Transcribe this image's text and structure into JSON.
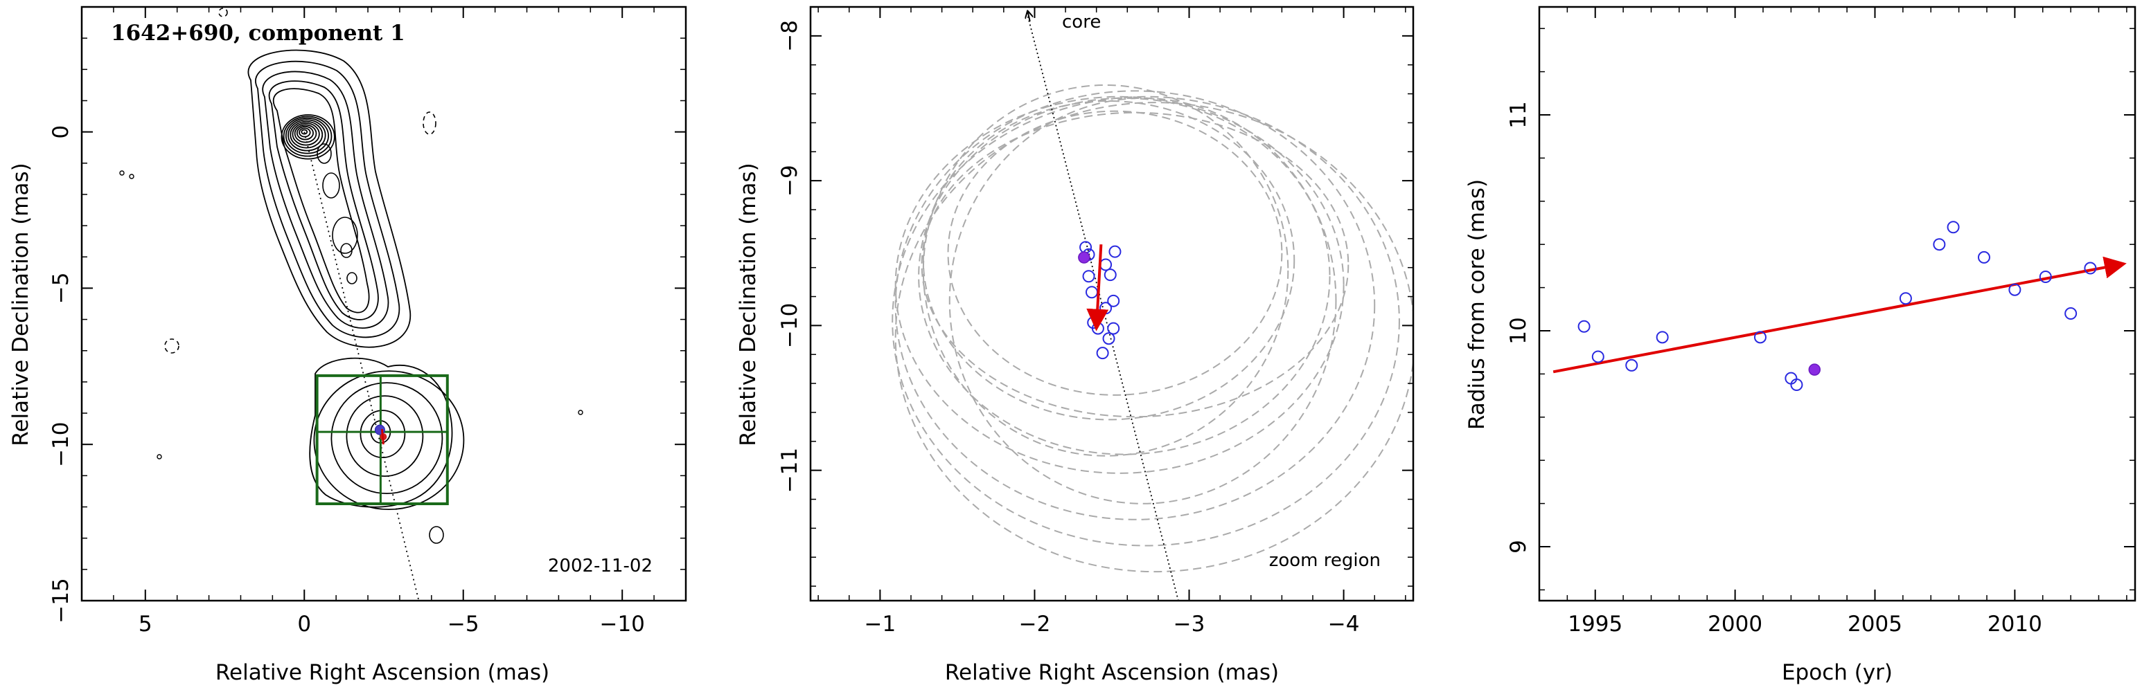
{
  "chart_data": [
    {
      "type": "contour-map",
      "title": "1642+690, component 1",
      "xlabel": "Relative Right Ascension (mas)",
      "ylabel": "Relative Declination (mas)",
      "date": "2002-11-02",
      "xlim": [
        7,
        -12
      ],
      "ylim": [
        -15,
        4
      ],
      "xticks": [
        5,
        0,
        -5,
        -10
      ],
      "yticks": [
        0,
        -5,
        -10,
        -15
      ],
      "xtick_labels": [
        "5",
        "0",
        "−5",
        "−10"
      ],
      "ytick_labels": [
        "0",
        "−5",
        "−10",
        "−15"
      ],
      "core": {
        "x": 0,
        "y": 0
      },
      "component": {
        "x": -2.4,
        "y": -9.6
      },
      "zoom_box": {
        "x": [
          -0.4,
          -4.5
        ],
        "y": [
          -7.8,
          -11.9
        ]
      }
    },
    {
      "type": "scatter",
      "annotation_core": "core",
      "annotation_zoom": "zoom region",
      "xlabel": "Relative Right Ascension (mas)",
      "ylabel": "Relative Declination (mas)",
      "xlim": [
        -0.55,
        -4.45
      ],
      "ylim": [
        -11.9,
        -7.8
      ],
      "xticks": [
        -1,
        -2,
        -3,
        -4
      ],
      "yticks": [
        -8,
        -9,
        -10,
        -11
      ],
      "xtick_labels": [
        "−1",
        "−2",
        "−3",
        "−4"
      ],
      "ytick_labels": [
        "−8",
        "−9",
        "−10",
        "−11"
      ],
      "points": [
        {
          "x": -2.33,
          "y": -9.46
        },
        {
          "x": -2.35,
          "y": -9.51
        },
        {
          "x": -2.52,
          "y": -9.49
        },
        {
          "x": -2.46,
          "y": -9.58
        },
        {
          "x": -2.49,
          "y": -9.65
        },
        {
          "x": -2.35,
          "y": -9.66
        },
        {
          "x": -2.37,
          "y": -9.77
        },
        {
          "x": -2.51,
          "y": -9.83
        },
        {
          "x": -2.46,
          "y": -9.88
        },
        {
          "x": -2.38,
          "y": -9.98
        },
        {
          "x": -2.51,
          "y": -10.02
        },
        {
          "x": -2.41,
          "y": -10.02
        },
        {
          "x": -2.48,
          "y": -10.09
        },
        {
          "x": -2.44,
          "y": -10.19
        }
      ],
      "highlight": {
        "x": -2.32,
        "y": -9.53
      },
      "motion_arrow": {
        "from": {
          "x": -2.43,
          "y": -9.44
        },
        "to": {
          "x": -2.4,
          "y": -10.02
        }
      },
      "jet_line": {
        "from": {
          "x": -1.95,
          "y": -7.8
        },
        "to": {
          "x": -2.93,
          "y": -11.9
        }
      },
      "ellipses": [
        {
          "cx": -2.48,
          "cy": -9.55,
          "rx": 1.2,
          "ry": 1.1
        },
        {
          "cx": -2.58,
          "cy": -9.66,
          "rx": 1.33,
          "ry": 1.23
        },
        {
          "cx": -2.55,
          "cy": -9.72,
          "rx": 1.45,
          "ry": 1.3
        },
        {
          "cx": -2.65,
          "cy": -9.86,
          "rx": 1.55,
          "ry": 1.48
        },
        {
          "cx": -2.72,
          "cy": -9.97,
          "rx": 1.64,
          "ry": 1.55
        },
        {
          "cx": -2.78,
          "cy": -10.08,
          "rx": 1.68,
          "ry": 1.62
        },
        {
          "cx": -2.52,
          "cy": -9.5,
          "rx": 1.08,
          "ry": 0.98
        },
        {
          "cx": -2.65,
          "cy": -9.58,
          "rx": 1.38,
          "ry": 1.05
        },
        {
          "cx": -2.7,
          "cy": -9.83,
          "rx": 1.25,
          "ry": 1.4
        },
        {
          "cx": -2.46,
          "cy": -9.62,
          "rx": 1.18,
          "ry": 1.28
        }
      ]
    },
    {
      "type": "scatter",
      "xlabel": "Epoch (yr)",
      "ylabel": "Radius from core (mas)",
      "xlim": [
        1993,
        2014.3
      ],
      "ylim": [
        8.75,
        11.5
      ],
      "xticks": [
        1995,
        2000,
        2005,
        2010
      ],
      "yticks": [
        9,
        10,
        11
      ],
      "xtick_labels": [
        "1995",
        "2000",
        "2005",
        "2010"
      ],
      "ytick_labels": [
        "9",
        "10",
        "11"
      ],
      "points": [
        {
          "x": 1994.6,
          "y": 10.02
        },
        {
          "x": 1995.1,
          "y": 9.88
        },
        {
          "x": 1996.3,
          "y": 9.84
        },
        {
          "x": 1997.4,
          "y": 9.97
        },
        {
          "x": 2000.9,
          "y": 9.97
        },
        {
          "x": 2002.0,
          "y": 9.78
        },
        {
          "x": 2002.2,
          "y": 9.75
        },
        {
          "x": 2006.1,
          "y": 10.15
        },
        {
          "x": 2007.3,
          "y": 10.4
        },
        {
          "x": 2007.8,
          "y": 10.48
        },
        {
          "x": 2008.9,
          "y": 10.34
        },
        {
          "x": 2010.0,
          "y": 10.19
        },
        {
          "x": 2011.1,
          "y": 10.25
        },
        {
          "x": 2012.0,
          "y": 10.08
        },
        {
          "x": 2012.7,
          "y": 10.29
        }
      ],
      "highlight": {
        "x": 2002.84,
        "y": 9.82
      },
      "fit_line": {
        "from": {
          "x": 1993.5,
          "y": 9.81
        },
        "to": {
          "x": 2013.9,
          "y": 10.31
        }
      }
    }
  ]
}
